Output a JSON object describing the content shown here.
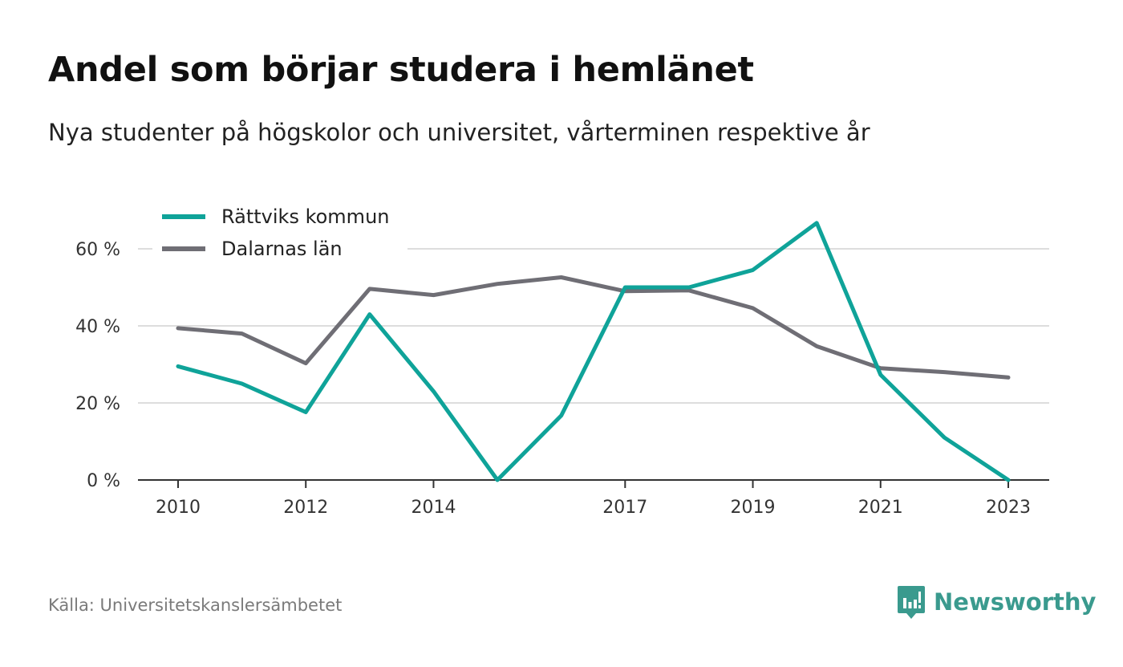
{
  "header": {
    "title": "Andel som börjar studera i hemlänet",
    "subtitle": "Nya studenter på högskolor och universitet, vårterminen respektive år"
  },
  "footer": {
    "source": "Källa: Universitetskanslersämbetet",
    "brand": "Newsworthy"
  },
  "colors": {
    "series_teal": "#0fa399",
    "series_gray": "#6f6e75",
    "grid": "#dddddd",
    "axis": "#333333",
    "brand": "#3a9a8e"
  },
  "chart_data": {
    "type": "line",
    "title": "Andel som börjar studera i hemlänet",
    "subtitle": "Nya studenter på högskolor och universitet, vårterminen respektive år",
    "x": [
      2010,
      2011,
      2012,
      2013,
      2014,
      2015,
      2016,
      2017,
      2018,
      2019,
      2020,
      2021,
      2022,
      2023
    ],
    "x_ticks": [
      2010,
      2012,
      2014,
      2017,
      2019,
      2021,
      2023
    ],
    "xlim": [
      2010,
      2023
    ],
    "y_ticks": [
      0,
      20,
      40,
      60
    ],
    "y_tick_labels": [
      "0 %",
      "20 %",
      "40 %",
      "60 %"
    ],
    "ylim": [
      0,
      60
    ],
    "grid": true,
    "legend": "top-left",
    "series": [
      {
        "name": "Rättviks kommun",
        "color": "#0fa399",
        "values": [
          29.5,
          25,
          17.6,
          43,
          23,
          0,
          16.7,
          50,
          50,
          54.5,
          66.7,
          27.3,
          11,
          0
        ]
      },
      {
        "name": "Dalarnas län",
        "color": "#6f6e75",
        "values": [
          39.4,
          38,
          30.3,
          49.6,
          48,
          50.9,
          52.6,
          49,
          49.2,
          44.6,
          34.7,
          29,
          28,
          26.6
        ]
      }
    ]
  }
}
